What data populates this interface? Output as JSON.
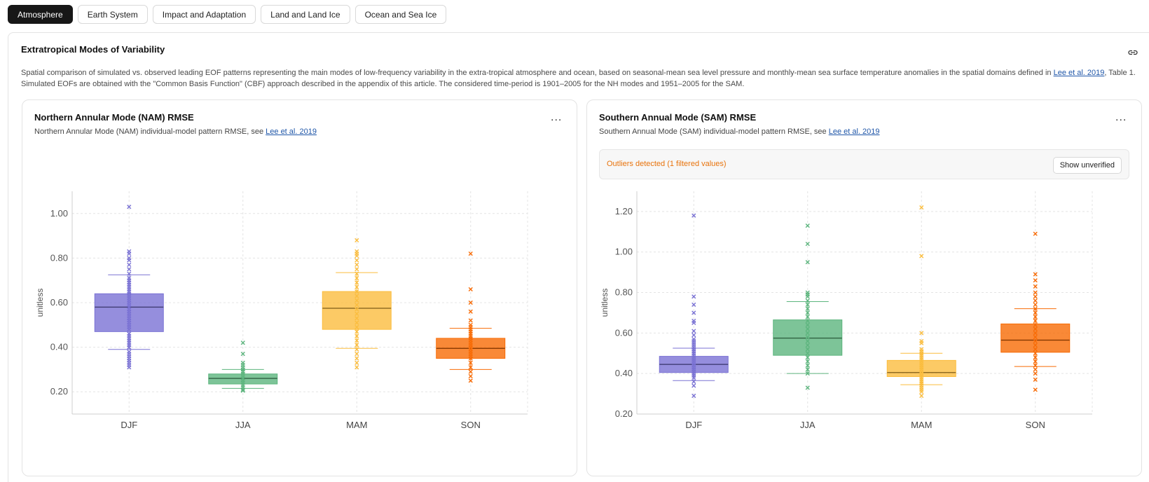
{
  "tabs": [
    {
      "label": "Atmosphere",
      "active": true
    },
    {
      "label": "Earth System",
      "active": false
    },
    {
      "label": "Impact and Adaptation",
      "active": false
    },
    {
      "label": "Land and Land Ice",
      "active": false
    },
    {
      "label": "Ocean and Sea Ice",
      "active": false
    }
  ],
  "section": {
    "title": "Extratropical Modes of Variability",
    "description_1": "Spatial comparison of simulated vs. observed leading EOF patterns representing the main modes of low-frequency variability in the extra-tropical atmosphere and ocean, based on seasonal-mean sea level pressure and monthly-mean sea surface temperature anomalies in the spatial domains defined in ",
    "description_link": "Lee et al. 2019",
    "description_2": ", Table 1. Simulated EOFs are obtained with the \"Common Basis Function\" (CBF) approach described in the appendix of this article. The considered time-period is 1901–2005 for the NH modes and 1951–2005 for the SAM."
  },
  "cards": [
    {
      "title": "Northern Annular Mode (NAM) RMSE",
      "subtitle": "Northern Annular Mode (NAM) individual-model pattern RMSE, see ",
      "subtitle_link": "Lee et al. 2019",
      "menu_label": "...",
      "outliers": null
    },
    {
      "title": "Southern Annual Mode (SAM) RMSE",
      "subtitle": "Southern Annual Mode (SAM) individual-model pattern RMSE, see ",
      "subtitle_link": "Lee et al. 2019",
      "menu_label": "...",
      "outliers": {
        "text": "Outliers detected (1 filtered values)",
        "button": "Show unverified"
      }
    }
  ],
  "chart_data": [
    {
      "type": "box",
      "title": "Northern Annular Mode (NAM) RMSE",
      "ylabel": "unitless",
      "ylim": [
        0.1,
        1.1
      ],
      "yticks": [
        0.2,
        0.4,
        0.6,
        0.8,
        1.0
      ],
      "ytick_labels": [
        "0.20",
        "0.40",
        "0.60",
        "0.80",
        "1.00"
      ],
      "categories": [
        "DJF",
        "JJA",
        "MAM",
        "SON"
      ],
      "colors": [
        "#7a72d4",
        "#5db57e",
        "#fbbd3e",
        "#f86b05"
      ],
      "boxes": [
        {
          "whisker_low": 0.39,
          "q1": 0.47,
          "median": 0.58,
          "q3": 0.64,
          "whisker_high": 0.725,
          "points": [
            0.31,
            0.32,
            0.33,
            0.34,
            0.35,
            0.36,
            0.37,
            0.38,
            0.4,
            0.41,
            0.42,
            0.43,
            0.44,
            0.45,
            0.46,
            0.48,
            0.49,
            0.5,
            0.51,
            0.52,
            0.53,
            0.54,
            0.55,
            0.56,
            0.57,
            0.58,
            0.59,
            0.6,
            0.61,
            0.62,
            0.63,
            0.64,
            0.65,
            0.66,
            0.67,
            0.68,
            0.69,
            0.7,
            0.71,
            0.73,
            0.75,
            0.77,
            0.79,
            0.8,
            0.82,
            0.83,
            1.03
          ]
        },
        {
          "whisker_low": 0.215,
          "q1": 0.235,
          "median": 0.26,
          "q3": 0.28,
          "whisker_high": 0.3,
          "points": [
            0.205,
            0.21,
            0.22,
            0.23,
            0.24,
            0.25,
            0.26,
            0.27,
            0.28,
            0.29,
            0.3,
            0.31,
            0.32,
            0.33,
            0.37,
            0.42
          ]
        },
        {
          "whisker_low": 0.395,
          "q1": 0.48,
          "median": 0.575,
          "q3": 0.65,
          "whisker_high": 0.735,
          "points": [
            0.31,
            0.33,
            0.35,
            0.37,
            0.39,
            0.41,
            0.43,
            0.45,
            0.47,
            0.49,
            0.51,
            0.53,
            0.55,
            0.57,
            0.59,
            0.61,
            0.63,
            0.65,
            0.67,
            0.69,
            0.71,
            0.73,
            0.75,
            0.77,
            0.79,
            0.81,
            0.82,
            0.83,
            0.88
          ]
        },
        {
          "whisker_low": 0.3,
          "q1": 0.35,
          "median": 0.395,
          "q3": 0.44,
          "whisker_high": 0.485,
          "points": [
            0.25,
            0.27,
            0.29,
            0.31,
            0.33,
            0.35,
            0.36,
            0.37,
            0.38,
            0.39,
            0.4,
            0.41,
            0.42,
            0.43,
            0.44,
            0.45,
            0.46,
            0.47,
            0.48,
            0.49,
            0.5,
            0.52,
            0.56,
            0.6,
            0.66,
            0.82
          ]
        }
      ]
    },
    {
      "type": "box",
      "title": "Southern Annual Mode (SAM) RMSE",
      "ylabel": "unitless",
      "ylim": [
        0.2,
        1.3
      ],
      "yticks": [
        0.2,
        0.4,
        0.6,
        0.8,
        1.0,
        1.2
      ],
      "ytick_labels": [
        "0.20",
        "0.40",
        "0.60",
        "0.80",
        "1.00",
        "1.20"
      ],
      "categories": [
        "DJF",
        "JJA",
        "MAM",
        "SON"
      ],
      "colors": [
        "#7a72d4",
        "#5db57e",
        "#fbbd3e",
        "#f86b05"
      ],
      "boxes": [
        {
          "whisker_low": 0.365,
          "q1": 0.405,
          "median": 0.445,
          "q3": 0.485,
          "whisker_high": 0.525,
          "points": [
            0.29,
            0.34,
            0.36,
            0.38,
            0.39,
            0.4,
            0.41,
            0.42,
            0.43,
            0.44,
            0.45,
            0.46,
            0.47,
            0.48,
            0.49,
            0.5,
            0.51,
            0.52,
            0.53,
            0.54,
            0.55,
            0.56,
            0.57,
            0.59,
            0.61,
            0.65,
            0.66,
            0.7,
            0.74,
            0.78,
            1.18
          ]
        },
        {
          "whisker_low": 0.4,
          "q1": 0.49,
          "median": 0.575,
          "q3": 0.665,
          "whisker_high": 0.755,
          "points": [
            0.33,
            0.4,
            0.42,
            0.44,
            0.46,
            0.48,
            0.5,
            0.52,
            0.54,
            0.56,
            0.58,
            0.6,
            0.62,
            0.64,
            0.66,
            0.68,
            0.7,
            0.72,
            0.74,
            0.76,
            0.78,
            0.79,
            0.8,
            0.95,
            1.04,
            1.13
          ]
        },
        {
          "whisker_low": 0.345,
          "q1": 0.385,
          "median": 0.405,
          "q3": 0.465,
          "whisker_high": 0.5,
          "points": [
            0.29,
            0.31,
            0.32,
            0.33,
            0.34,
            0.35,
            0.36,
            0.37,
            0.38,
            0.39,
            0.4,
            0.41,
            0.42,
            0.43,
            0.44,
            0.45,
            0.46,
            0.47,
            0.48,
            0.49,
            0.5,
            0.51,
            0.52,
            0.55,
            0.56,
            0.6,
            0.98,
            1.22
          ]
        },
        {
          "whisker_low": 0.435,
          "q1": 0.505,
          "median": 0.565,
          "q3": 0.645,
          "whisker_high": 0.72,
          "points": [
            0.32,
            0.37,
            0.4,
            0.42,
            0.44,
            0.46,
            0.48,
            0.5,
            0.52,
            0.54,
            0.56,
            0.58,
            0.6,
            0.62,
            0.64,
            0.66,
            0.68,
            0.7,
            0.72,
            0.74,
            0.76,
            0.78,
            0.8,
            0.83,
            0.86,
            0.89,
            1.09
          ]
        }
      ]
    }
  ]
}
